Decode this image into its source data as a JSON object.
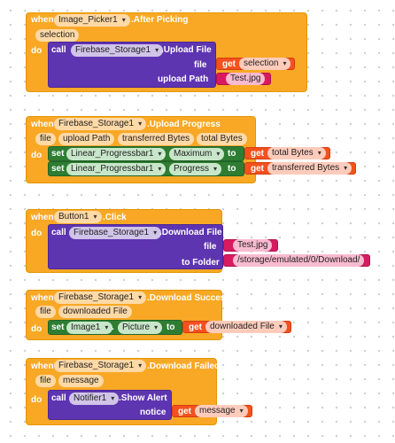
{
  "blocks": {
    "after_picking": {
      "when": "when",
      "component": "Image_Picker1",
      "event": ".After Picking",
      "param": "selection",
      "do": "do",
      "call": "call",
      "call_component": "Firebase_Storage1",
      "method": ".Upload File",
      "arg1_label": "file",
      "arg1_get": "get",
      "arg1_value": "selection",
      "arg2_label": "upload Path",
      "arg2_text": "Test.jpg"
    },
    "upload_progress": {
      "when": "when",
      "component": "Firebase_Storage1",
      "event": ".Upload Progress",
      "params": [
        "file",
        "upload Path",
        "transferred Bytes",
        "total Bytes"
      ],
      "do": "do",
      "set1": "set",
      "set1_component": "Linear_Progressbar1",
      "set1_dot": ".",
      "set1_property": "Maximum",
      "set1_to": "to",
      "set1_get": "get",
      "set1_value": "total Bytes",
      "set2": "set",
      "set2_component": "Linear_Progressbar1",
      "set2_dot": ".",
      "set2_property": "Progress",
      "set2_to": "to",
      "set2_get": "get",
      "set2_value": "transferred Bytes"
    },
    "button_click": {
      "when": "when",
      "component": "Button1",
      "event": ".Click",
      "do": "do",
      "call": "call",
      "call_component": "Firebase_Storage1",
      "method": ".Download File",
      "arg1_label": "file",
      "arg1_text": "Test.jpg",
      "arg2_label": "to Folder",
      "arg2_text": "/storage/emulated/0/Download/"
    },
    "download_success": {
      "when": "when",
      "component": "Firebase_Storage1",
      "event": ".Download Success",
      "params": [
        "file",
        "downloaded File"
      ],
      "do": "do",
      "set": "set",
      "set_component": "Image1",
      "set_dot": ".",
      "set_property": "Picture",
      "set_to": "to",
      "set_get": "get",
      "set_value": "downloaded File"
    },
    "download_failed": {
      "when": "when",
      "component": "Firebase_Storage1",
      "event": ".Download Failed",
      "params": [
        "file",
        "message"
      ],
      "do": "do",
      "call": "call",
      "call_component": "Notifier1",
      "method": ".Show Alert",
      "arg1_label": "notice",
      "arg1_get": "get",
      "arg1_value": "message"
    }
  },
  "colors": {
    "event": "#f9a825",
    "procedure": "#5e35b1",
    "setter": "#2e7d32",
    "getter": "#f4511e",
    "text": "#d81b60"
  }
}
